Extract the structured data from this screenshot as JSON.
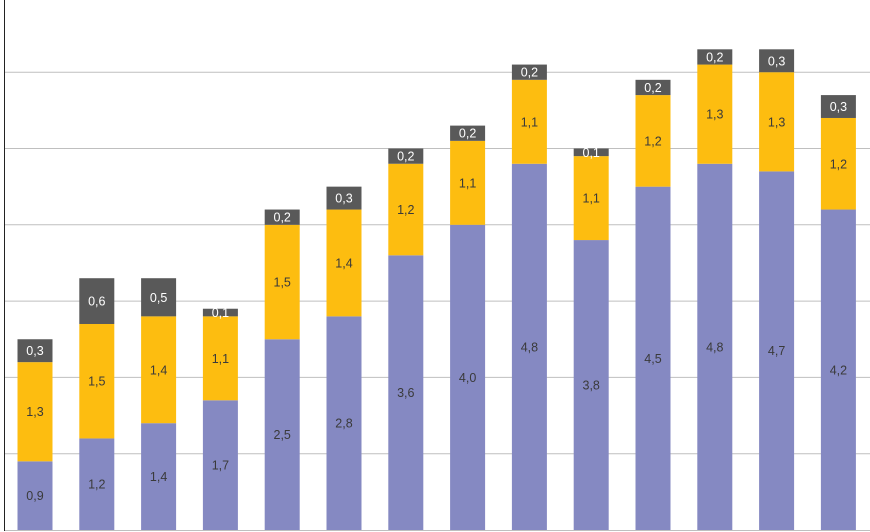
{
  "chart_data": {
    "type": "bar",
    "stacked": true,
    "categories": [
      "",
      "",
      "",
      "",
      "",
      "",
      "",
      "",
      "",
      "",
      "",
      "",
      "",
      ""
    ],
    "series": [
      {
        "values": [
          0.9,
          1.2,
          1.4,
          1.7,
          2.5,
          2.8,
          3.6,
          4.0,
          4.8,
          3.8,
          4.5,
          4.8,
          4.7,
          4.2
        ],
        "labels": [
          "0,9",
          "1,2",
          "1,4",
          "1,7",
          "2,5",
          "2,8",
          "3,6",
          "4,0",
          "4,8",
          "3,8",
          "4,5",
          "4,8",
          "4,7",
          "4,2"
        ],
        "color": "#8589C2",
        "label_color": "#3A3A3A"
      },
      {
        "values": [
          1.3,
          1.5,
          1.4,
          1.1,
          1.5,
          1.4,
          1.2,
          1.1,
          1.1,
          1.1,
          1.2,
          1.3,
          1.3,
          1.2
        ],
        "labels": [
          "1,3",
          "1,5",
          "1,4",
          "1,1",
          "1,5",
          "1,4",
          "1,2",
          "1,1",
          "1,1",
          "1,1",
          "1,2",
          "1,3",
          "1,3",
          "1,2"
        ],
        "color": "#FDBD10",
        "label_color": "#3A3A3A"
      },
      {
        "values": [
          0.3,
          0.6,
          0.5,
          0.1,
          0.2,
          0.3,
          0.2,
          0.2,
          0.2,
          0.1,
          0.2,
          0.2,
          0.3,
          0.3
        ],
        "labels": [
          "0,3",
          "0,6",
          "0,5",
          "0,1",
          "0,2",
          "0,3",
          "0,2",
          "0,2",
          "0,2",
          "0,1",
          "0,2",
          "0,2",
          "0,3",
          "0,3"
        ],
        "color": "#595959",
        "label_color": "#FFFFFF"
      }
    ],
    "ylim": [
      0,
      7
    ],
    "grid": true,
    "gridline_values": [
      1,
      2,
      3,
      4,
      5,
      6,
      7
    ],
    "gridline_color": "#BFBFBF",
    "axis_color": "#222222",
    "show_tick_labels": false,
    "legend": "none"
  }
}
